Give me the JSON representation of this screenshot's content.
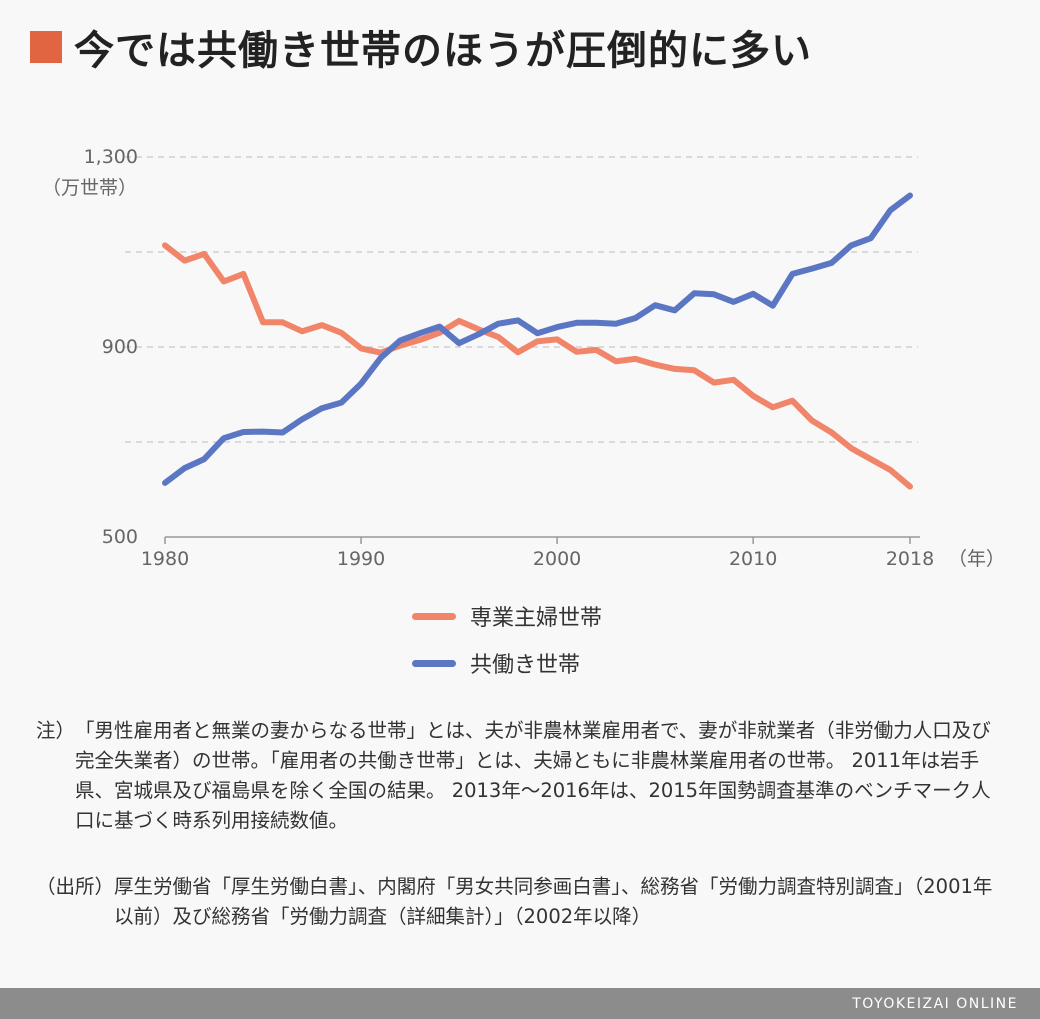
{
  "title": "今では共働き世帯のほうが圧倒的に多い",
  "title_marker_color": "#e06540",
  "chart_data": {
    "type": "line",
    "ylabel_unit": "（万世帯）",
    "xlabel_unit": "（年）",
    "ylim": [
      500,
      1300
    ],
    "xlim": [
      1980,
      2018
    ],
    "y_ticks": [
      500,
      900,
      1300
    ],
    "y_tick_labels": [
      "500",
      "900",
      "1,300"
    ],
    "y_gridlines": [
      700,
      900,
      1100,
      1300
    ],
    "x_ticks": [
      1980,
      1990,
      2000,
      2010,
      2018
    ],
    "x_tick_labels": [
      "1980",
      "1990",
      "2000",
      "2010",
      "2018"
    ],
    "x": [
      1980,
      1981,
      1982,
      1983,
      1984,
      1985,
      1986,
      1987,
      1988,
      1989,
      1990,
      1991,
      1992,
      1993,
      1994,
      1995,
      1996,
      1997,
      1998,
      1999,
      2000,
      2001,
      2002,
      2003,
      2004,
      2005,
      2006,
      2007,
      2008,
      2009,
      2010,
      2011,
      2012,
      2013,
      2014,
      2015,
      2016,
      2017,
      2018
    ],
    "series": [
      {
        "name": "専業主婦世帯",
        "color": "#f0856a",
        "values": [
          1114,
          1082,
          1096,
          1038,
          1054,
          952,
          952,
          933,
          946,
          930,
          897,
          888,
          903,
          915,
          930,
          955,
          937,
          921,
          889,
          912,
          916,
          890,
          894,
          870,
          875,
          863,
          854,
          851,
          825,
          831,
          797,
          773,
          787,
          745,
          720,
          687,
          664,
          641,
          606
        ]
      },
      {
        "name": "共働き世帯",
        "color": "#5b76c2",
        "values": [
          614,
          645,
          664,
          708,
          721,
          722,
          720,
          748,
          771,
          783,
          823,
          877,
          914,
          929,
          943,
          908,
          927,
          949,
          956,
          929,
          942,
          951,
          951,
          949,
          961,
          988,
          977,
          1013,
          1011,
          995,
          1012,
          987,
          1054,
          1065,
          1077,
          1114,
          1129,
          1188,
          1219
        ]
      }
    ]
  },
  "note": {
    "head": "注）",
    "text": "「男性雇用者と無業の妻からなる世帯」とは、夫が非農林業雇用者で、妻が非就業者（非労働力人口及び完全失業者）の世帯。「雇用者の共働き世帯」とは、夫婦ともに非農林業雇用者の世帯。 2011年は岩手県、宮城県及び福島県を除く全国の結果。 2013年〜2016年は、2015年国勢調査基準のベンチマーク人口に基づく時系列用接続数値。"
  },
  "source": {
    "head": "（出所）",
    "text": "厚生労働省「厚生労働白書」、内閣府「男女共同参画白書」、総務省「労働力調査特別調査」（2001年以前）及び総務省「労働力調査（詳細集計）」（2002年以降）"
  },
  "footer": "TOYOKEIZAI ONLINE"
}
